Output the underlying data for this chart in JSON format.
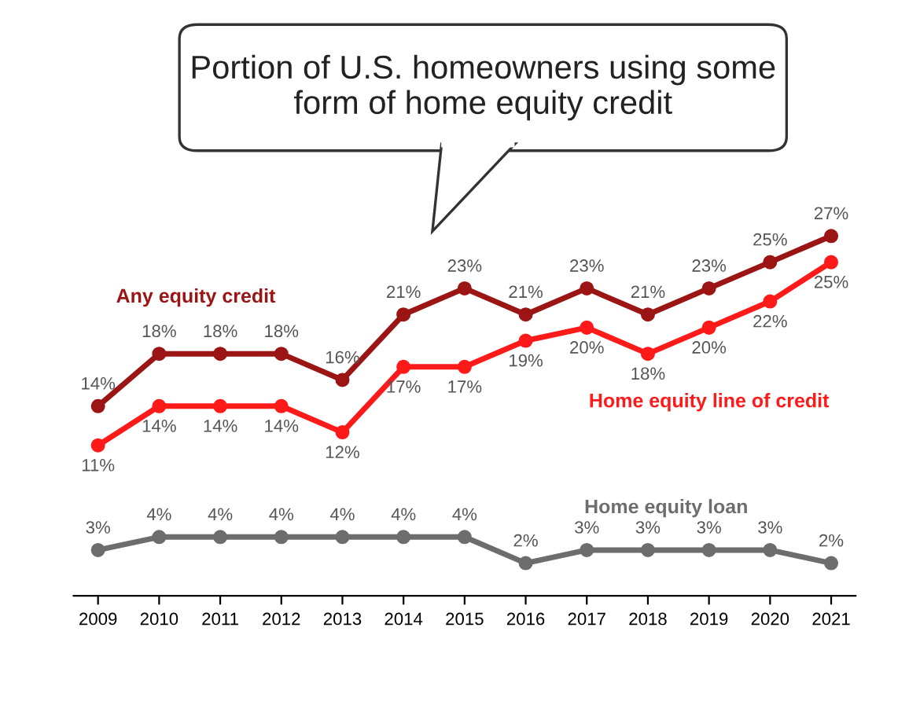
{
  "chart_data": {
    "type": "line",
    "title": "Portion of U.S. homeowners using some form of home equity credit",
    "categories": [
      "2009",
      "2010",
      "2011",
      "2012",
      "2013",
      "2014",
      "2015",
      "2016",
      "2017",
      "2018",
      "2019",
      "2020",
      "2021"
    ],
    "series": [
      {
        "name": "Any equity credit",
        "color": "#9c1515",
        "values": [
          14,
          18,
          18,
          18,
          16,
          21,
          23,
          21,
          23,
          21,
          23,
          25,
          27
        ],
        "value_labels": [
          "14%",
          "18%",
          "18%",
          "18%",
          "16%",
          "21%",
          "23%",
          "21%",
          "23%",
          "21%",
          "23%",
          "25%",
          "27%"
        ]
      },
      {
        "name": "Home equity line of credit",
        "color": "#ff1a1a",
        "values": [
          11,
          14,
          14,
          14,
          12,
          17,
          17,
          19,
          20,
          18,
          20,
          22,
          25
        ],
        "value_labels": [
          "11%",
          "14%",
          "14%",
          "14%",
          "12%",
          "17%",
          "17%",
          "19%",
          "20%",
          "18%",
          "20%",
          "22%",
          "25%"
        ]
      },
      {
        "name": "Home equity loan",
        "color": "#6d6d6d",
        "values": [
          3,
          4,
          4,
          4,
          4,
          4,
          4,
          2,
          3,
          3,
          3,
          3,
          2
        ],
        "value_labels": [
          "3%",
          "4%",
          "4%",
          "4%",
          "4%",
          "4%",
          "4%",
          "2%",
          "3%",
          "3%",
          "3%",
          "3%",
          "2%"
        ]
      }
    ],
    "marker": "circle",
    "line_style": "solid",
    "grid": false,
    "legend": false
  }
}
